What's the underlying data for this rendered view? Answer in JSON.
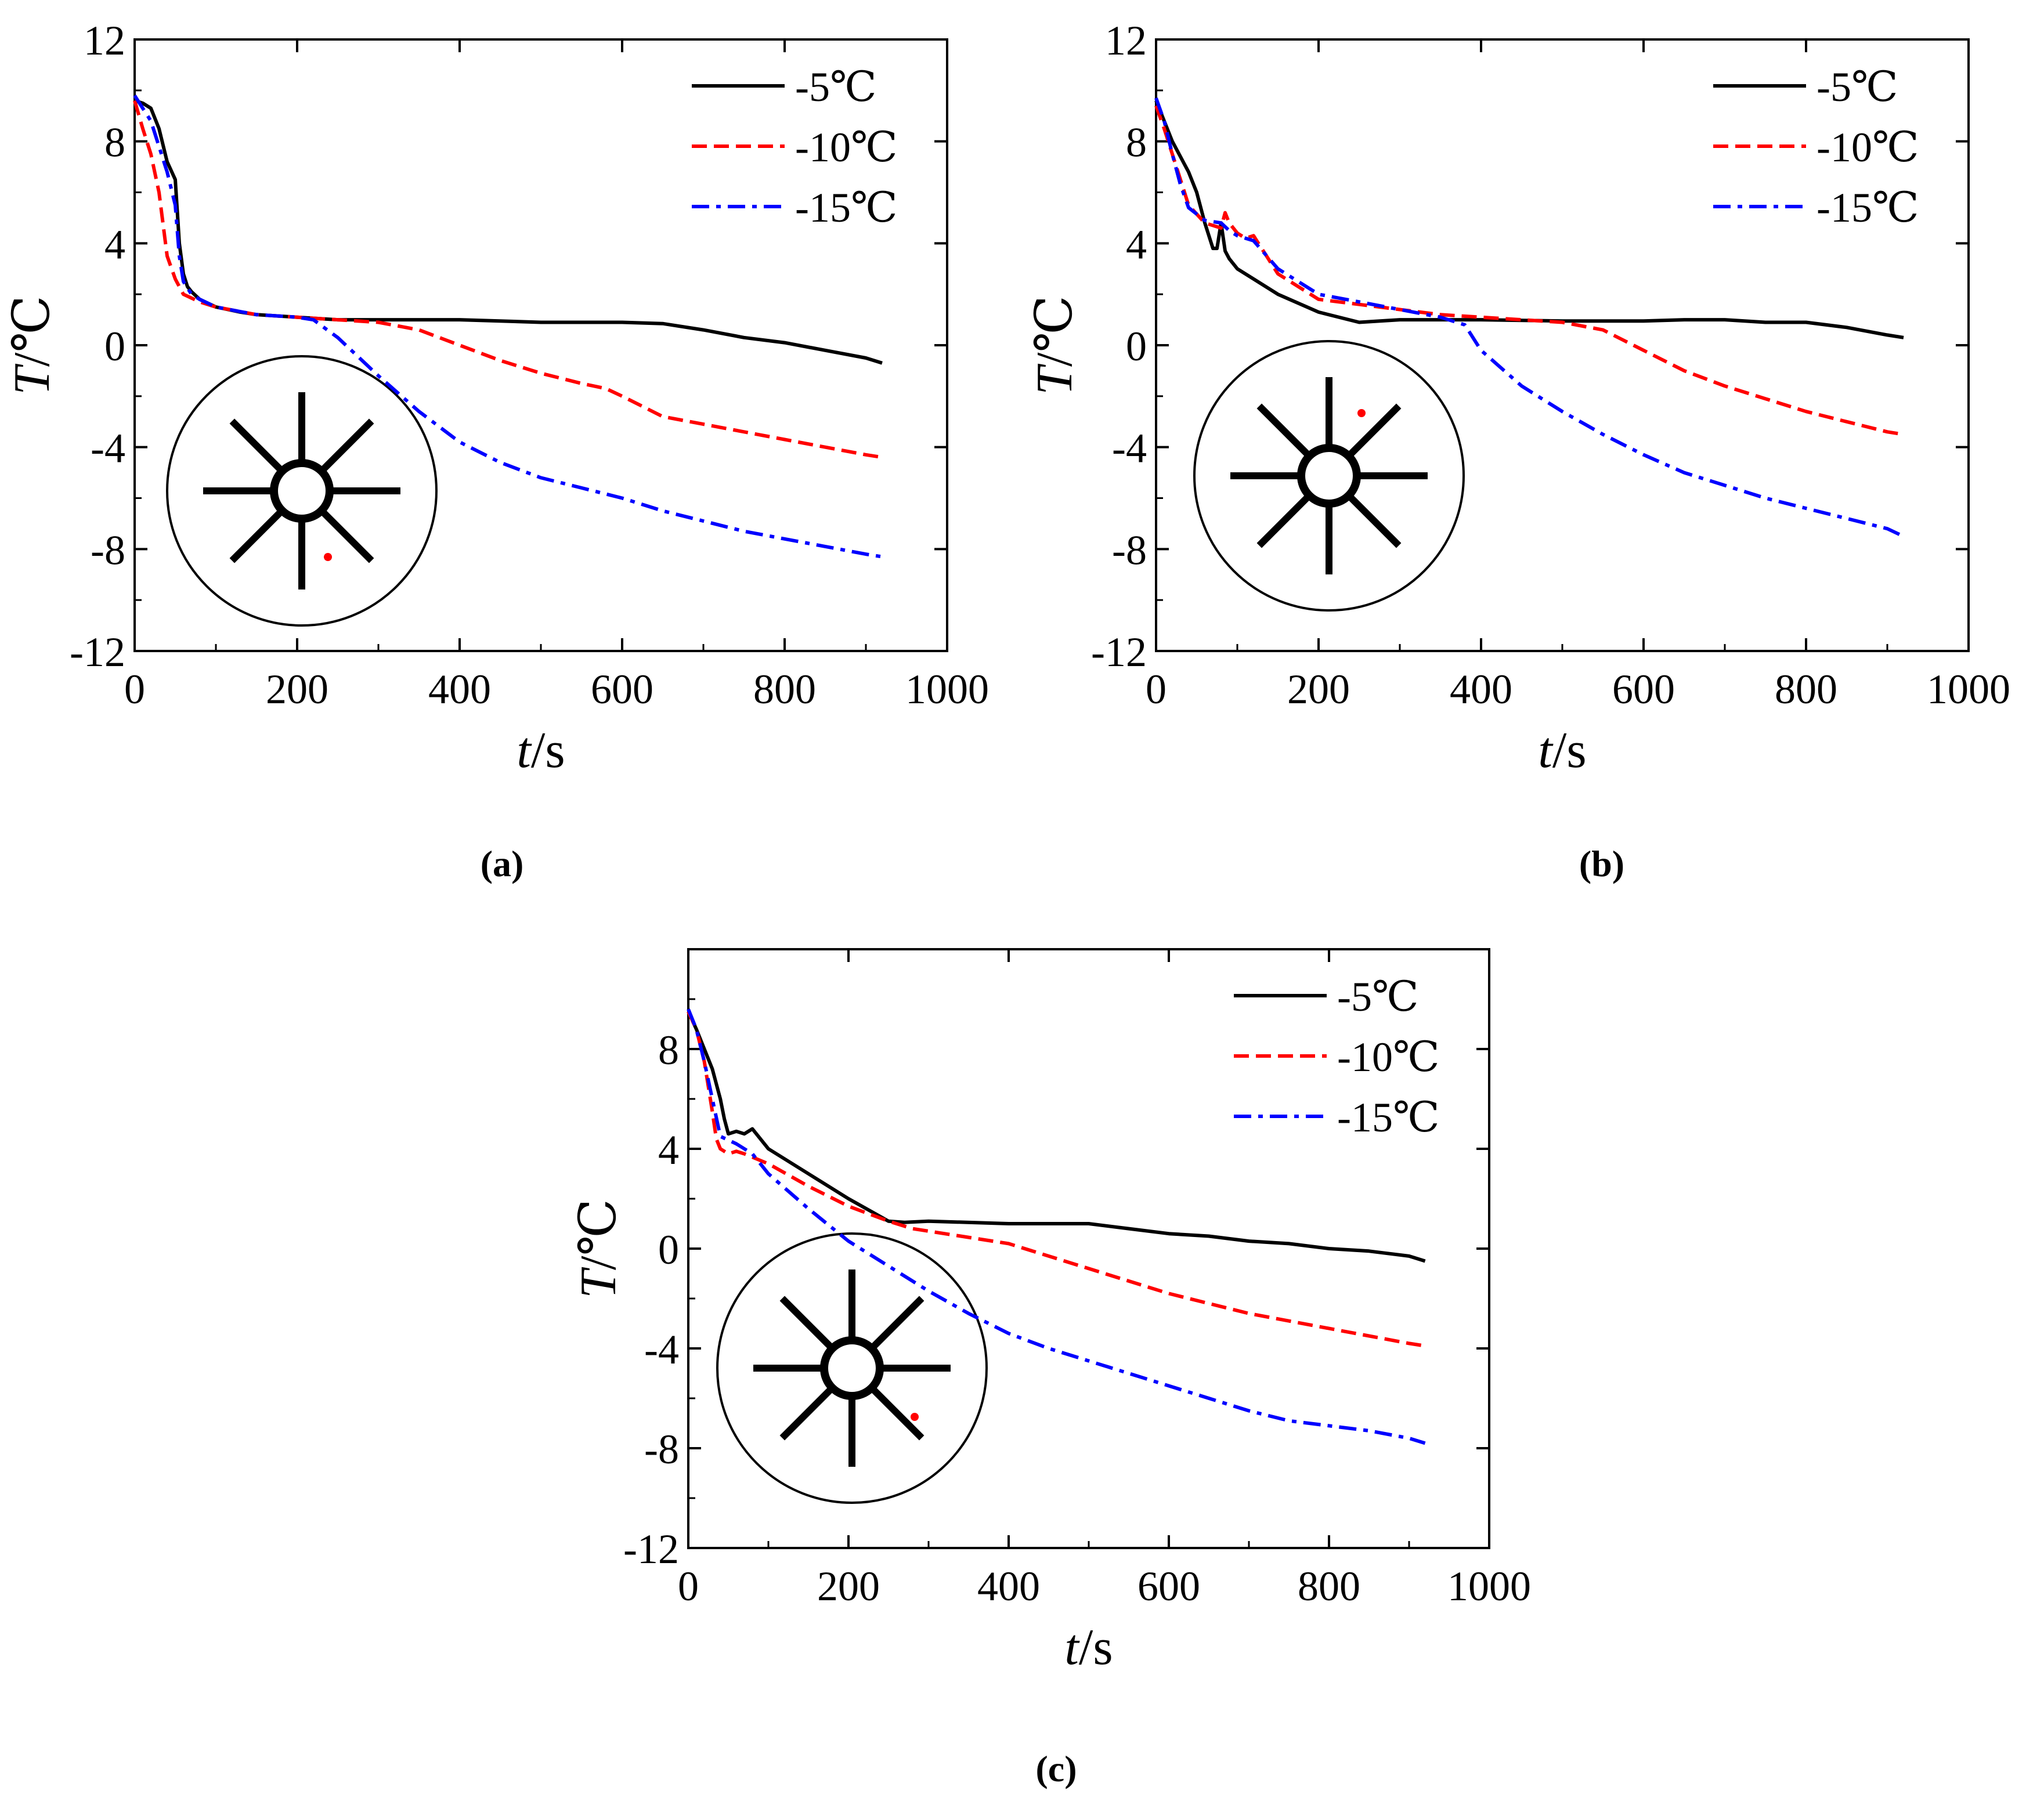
{
  "figure": {
    "panel_labels": [
      "(a)",
      "(b)",
      "(c)"
    ],
    "legend_entries": [
      {
        "label": "-5℃",
        "color": "#000000",
        "dash": "solid"
      },
      {
        "label": "-10℃",
        "color": "#ff0000",
        "dash": "dash"
      },
      {
        "label": "-15℃",
        "color": "#0000ff",
        "dash": "dashdot"
      }
    ],
    "inset_marker_color": "#ff0000"
  },
  "chart_data": [
    {
      "type": "line",
      "panel": "a",
      "title": "",
      "xlabel_var": "t",
      "xlabel_unit": "/s",
      "ylabel_var": "T",
      "ylabel_unit": "/℃",
      "xlim": [
        0,
        1000
      ],
      "ylim": [
        -12,
        12
      ],
      "x_ticks": [
        0,
        200,
        400,
        600,
        800,
        1000
      ],
      "y_ticks": [
        -12,
        -8,
        -4,
        0,
        4,
        8,
        12
      ],
      "x_tick_labels": [
        "0",
        "200",
        "400",
        "600",
        "800",
        "1000"
      ],
      "y_tick_labels": [
        "-12",
        "-8",
        "-4",
        "0",
        "4",
        "8",
        "12"
      ],
      "legend_position": "top-right",
      "inset": "probe below center, slightly right of the lower vertical fin",
      "series": [
        {
          "name": "-5℃",
          "color": "#000000",
          "dash": "solid",
          "x": [
            0,
            10,
            20,
            30,
            40,
            50,
            55,
            60,
            65,
            70,
            80,
            100,
            130,
            150,
            200,
            250,
            300,
            400,
            500,
            600,
            650,
            700,
            750,
            800,
            850,
            900,
            920
          ],
          "y": [
            9.6,
            9.5,
            9.3,
            8.5,
            7.2,
            6.5,
            4.0,
            2.8,
            2.3,
            2.1,
            1.8,
            1.5,
            1.3,
            1.2,
            1.1,
            1.0,
            1.0,
            1.0,
            0.9,
            0.9,
            0.85,
            0.6,
            0.3,
            0.1,
            -0.2,
            -0.5,
            -0.7
          ]
        },
        {
          "name": "-10℃",
          "color": "#ff0000",
          "dash": "dash",
          "x": [
            0,
            10,
            20,
            30,
            40,
            50,
            60,
            80,
            100,
            150,
            200,
            250,
            300,
            350,
            400,
            450,
            500,
            550,
            580,
            600,
            650,
            700,
            750,
            800,
            850,
            900,
            920
          ],
          "y": [
            9.6,
            8.5,
            7.5,
            6.0,
            3.5,
            2.6,
            2.0,
            1.7,
            1.5,
            1.2,
            1.1,
            1.0,
            0.9,
            0.6,
            0.0,
            -0.6,
            -1.1,
            -1.5,
            -1.7,
            -2.0,
            -2.8,
            -3.1,
            -3.4,
            -3.7,
            -4.0,
            -4.3,
            -4.4
          ]
        },
        {
          "name": "-15℃",
          "color": "#0000ff",
          "dash": "dashdot",
          "x": [
            0,
            10,
            20,
            30,
            40,
            50,
            55,
            60,
            70,
            80,
            100,
            150,
            200,
            220,
            250,
            300,
            350,
            400,
            450,
            500,
            550,
            600,
            650,
            700,
            750,
            800,
            850,
            900,
            920
          ],
          "y": [
            9.8,
            9.3,
            8.8,
            7.8,
            6.8,
            5.5,
            3.5,
            2.5,
            2.0,
            1.8,
            1.5,
            1.2,
            1.1,
            1.0,
            0.3,
            -1.2,
            -2.6,
            -3.8,
            -4.6,
            -5.2,
            -5.6,
            -6.0,
            -6.5,
            -6.9,
            -7.3,
            -7.6,
            -7.9,
            -8.2,
            -8.3
          ]
        }
      ]
    },
    {
      "type": "line",
      "panel": "b",
      "title": "",
      "xlabel_var": "t",
      "xlabel_unit": "/s",
      "ylabel_var": "T",
      "ylabel_unit": "/℃",
      "xlim": [
        0,
        1000
      ],
      "ylim": [
        -12,
        12
      ],
      "x_ticks": [
        0,
        200,
        400,
        600,
        800,
        1000
      ],
      "y_ticks": [
        -12,
        -8,
        -4,
        0,
        4,
        8,
        12
      ],
      "x_tick_labels": [
        "0",
        "200",
        "400",
        "600",
        "800",
        "1000"
      ],
      "y_tick_labels": [
        "-12",
        "-8",
        "-4",
        "0",
        "4",
        "8",
        "12"
      ],
      "legend_position": "top-right",
      "inset": "probe upper right of center, between the upper vertical fin and the upper-right fin",
      "series": [
        {
          "name": "-5℃",
          "color": "#000000",
          "dash": "solid",
          "x": [
            0,
            10,
            20,
            30,
            40,
            50,
            60,
            70,
            75,
            80,
            85,
            90,
            100,
            120,
            150,
            200,
            250,
            300,
            400,
            500,
            600,
            650,
            700,
            750,
            800,
            850,
            900,
            920
          ],
          "y": [
            9.6,
            8.8,
            8.0,
            7.4,
            6.8,
            6.0,
            4.8,
            3.8,
            3.8,
            4.8,
            3.7,
            3.4,
            3.0,
            2.6,
            2.0,
            1.3,
            0.9,
            1.0,
            1.0,
            0.95,
            0.95,
            1.0,
            1.0,
            0.9,
            0.9,
            0.7,
            0.4,
            0.3
          ]
        },
        {
          "name": "-10℃",
          "color": "#ff0000",
          "dash": "dash",
          "x": [
            0,
            10,
            20,
            30,
            40,
            60,
            80,
            85,
            90,
            100,
            110,
            120,
            150,
            200,
            250,
            300,
            350,
            400,
            450,
            500,
            550,
            600,
            650,
            700,
            750,
            800,
            850,
            900,
            920
          ],
          "y": [
            9.4,
            8.5,
            7.5,
            6.5,
            5.5,
            4.8,
            4.6,
            5.2,
            4.8,
            4.4,
            4.2,
            4.3,
            2.8,
            1.8,
            1.6,
            1.4,
            1.2,
            1.1,
            1.0,
            0.9,
            0.6,
            -0.2,
            -1.0,
            -1.6,
            -2.1,
            -2.6,
            -3.0,
            -3.4,
            -3.5
          ]
        },
        {
          "name": "-15℃",
          "color": "#0000ff",
          "dash": "dashdot",
          "x": [
            0,
            10,
            20,
            30,
            40,
            60,
            80,
            90,
            100,
            120,
            150,
            200,
            250,
            300,
            350,
            380,
            400,
            450,
            500,
            550,
            600,
            650,
            700,
            750,
            800,
            850,
            900,
            920
          ],
          "y": [
            9.7,
            8.8,
            7.5,
            6.3,
            5.4,
            4.9,
            4.8,
            4.5,
            4.3,
            4.1,
            3.0,
            2.0,
            1.7,
            1.4,
            1.1,
            0.8,
            -0.2,
            -1.6,
            -2.6,
            -3.5,
            -4.3,
            -5.0,
            -5.5,
            -6.0,
            -6.4,
            -6.8,
            -7.2,
            -7.5
          ]
        }
      ]
    },
    {
      "type": "line",
      "panel": "c",
      "title": "",
      "xlabel_var": "t",
      "xlabel_unit": "/s",
      "ylabel_var": "T",
      "ylabel_unit": "/℃",
      "xlim": [
        0,
        1000
      ],
      "ylim": [
        -12,
        12
      ],
      "x_ticks": [
        0,
        200,
        400,
        600,
        800,
        1000
      ],
      "y_ticks": [
        -12,
        -8,
        -4,
        0,
        4,
        8
      ],
      "x_tick_labels": [
        "0",
        "200",
        "400",
        "600",
        "800",
        "1000"
      ],
      "y_tick_labels": [
        "-12",
        "-8",
        "-4",
        "0",
        "4",
        "8"
      ],
      "legend_position": "top-right",
      "inset": "probe right of center, just below the right horizontal fin",
      "series": [
        {
          "name": "-5℃",
          "color": "#000000",
          "dash": "solid",
          "x": [
            0,
            10,
            20,
            30,
            40,
            45,
            50,
            60,
            70,
            80,
            100,
            150,
            200,
            250,
            270,
            300,
            400,
            500,
            550,
            600,
            650,
            700,
            750,
            800,
            850,
            900,
            920
          ],
          "y": [
            9.5,
            8.8,
            8.0,
            7.2,
            6.0,
            5.2,
            4.6,
            4.7,
            4.6,
            4.8,
            4.0,
            3.0,
            2.0,
            1.1,
            1.05,
            1.1,
            1.0,
            1.0,
            0.8,
            0.6,
            0.5,
            0.3,
            0.2,
            0.0,
            -0.1,
            -0.3,
            -0.5
          ]
        },
        {
          "name": "-10℃",
          "color": "#ff0000",
          "dash": "dash",
          "x": [
            0,
            10,
            20,
            30,
            35,
            40,
            50,
            60,
            70,
            100,
            150,
            200,
            250,
            280,
            300,
            400,
            500,
            600,
            700,
            750,
            800,
            850,
            900,
            920
          ],
          "y": [
            9.5,
            8.8,
            7.5,
            5.5,
            4.4,
            4.0,
            3.8,
            3.9,
            3.8,
            3.4,
            2.5,
            1.7,
            1.1,
            0.8,
            0.7,
            0.2,
            -0.8,
            -1.8,
            -2.6,
            -2.9,
            -3.2,
            -3.5,
            -3.8,
            -3.9
          ]
        },
        {
          "name": "-15℃",
          "color": "#0000ff",
          "dash": "dashdot",
          "x": [
            0,
            10,
            20,
            30,
            40,
            60,
            80,
            100,
            150,
            200,
            250,
            300,
            350,
            400,
            450,
            500,
            550,
            600,
            650,
            700,
            750,
            800,
            850,
            900,
            920
          ],
          "y": [
            9.6,
            8.8,
            7.5,
            6.0,
            4.5,
            4.2,
            3.8,
            3.0,
            1.6,
            0.3,
            -0.7,
            -1.7,
            -2.6,
            -3.4,
            -4.0,
            -4.5,
            -5.0,
            -5.5,
            -6.0,
            -6.5,
            -6.9,
            -7.1,
            -7.3,
            -7.6,
            -7.8
          ]
        }
      ]
    }
  ]
}
